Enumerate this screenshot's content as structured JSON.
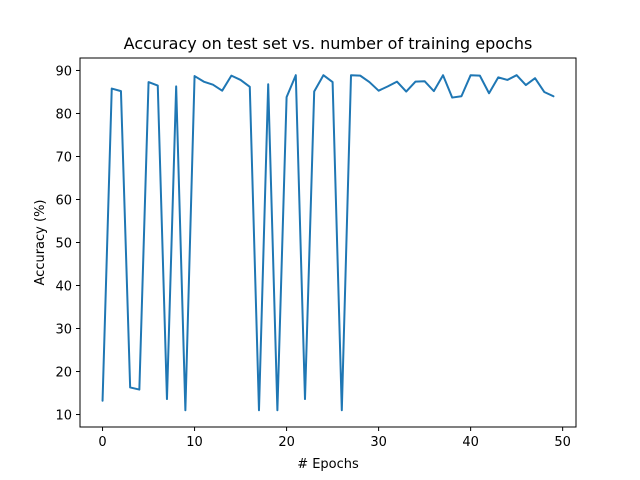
{
  "chart_data": {
    "type": "line",
    "title": "Accuracy on test set vs. number of training epochs",
    "xlabel": "# Epochs",
    "ylabel": "Accuracy (%)",
    "xlim": [
      -2.45,
      51.45
    ],
    "ylim": [
      7.1,
      92.9
    ],
    "xticks": [
      0,
      10,
      20,
      30,
      40,
      50
    ],
    "yticks": [
      10,
      20,
      30,
      40,
      50,
      60,
      70,
      80,
      90
    ],
    "grid": false,
    "series": [
      {
        "color": "#1f77b4",
        "x": [
          0,
          1,
          2,
          3,
          4,
          5,
          6,
          7,
          8,
          9,
          10,
          11,
          12,
          13,
          14,
          15,
          16,
          17,
          18,
          19,
          20,
          21,
          22,
          23,
          24,
          25,
          26,
          27,
          28,
          29,
          30,
          31,
          32,
          33,
          34,
          35,
          36,
          37,
          38,
          39,
          40,
          41,
          42,
          43,
          44,
          45,
          46,
          47,
          48,
          49
        ],
        "y": [
          13.2,
          85.8,
          85.2,
          16.3,
          15.8,
          87.3,
          86.5,
          13.6,
          86.3,
          11.0,
          88.7,
          87.4,
          86.7,
          85.3,
          88.8,
          87.8,
          86.2,
          11.0,
          86.8,
          11.0,
          83.8,
          88.9,
          13.6,
          85.1,
          88.9,
          87.3,
          11.0,
          88.9,
          88.8,
          87.3,
          85.3,
          86.3,
          87.4,
          85.1,
          87.4,
          87.5,
          85.2,
          88.9,
          83.7,
          84.0,
          88.9,
          88.8,
          84.7,
          88.4,
          87.8,
          88.9,
          86.6,
          88.2,
          85.0,
          84.0
        ]
      }
    ]
  }
}
